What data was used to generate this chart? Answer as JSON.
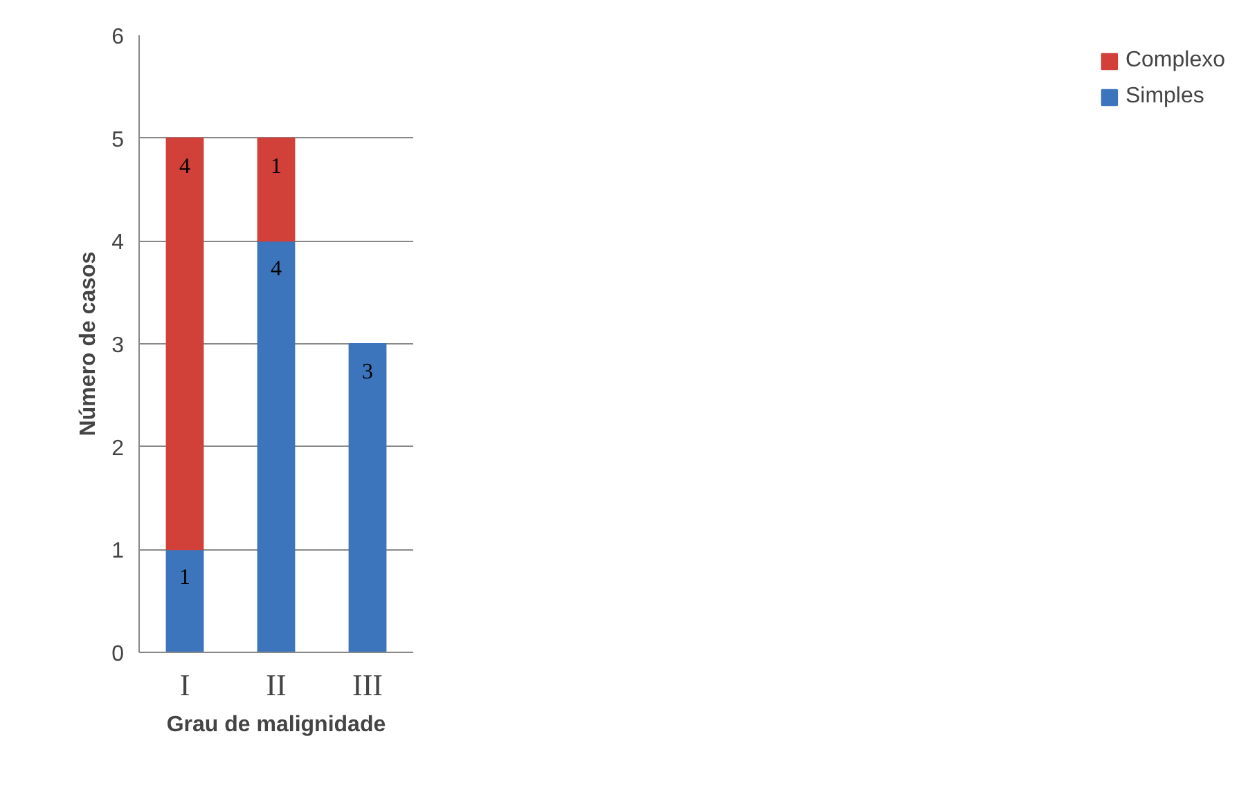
{
  "chart_data": {
    "type": "bar",
    "stacked": true,
    "xlabel": "Grau de malignidade",
    "ylabel": "Número de casos",
    "categories": [
      "I",
      "II",
      "III"
    ],
    "series": [
      {
        "name": "Simples",
        "color": "#3d75bd",
        "values": [
          1,
          4,
          3
        ],
        "value_labels": [
          "1",
          "4",
          "3"
        ]
      },
      {
        "name": "Complexo",
        "color": "#d2403a",
        "values": [
          4,
          1,
          null
        ],
        "value_labels": [
          "4",
          "1",
          null
        ]
      }
    ],
    "ylim": [
      0,
      6
    ],
    "yticks": [
      0,
      1,
      2,
      3,
      4,
      5,
      6
    ],
    "grid": "y",
    "legend": "right"
  }
}
